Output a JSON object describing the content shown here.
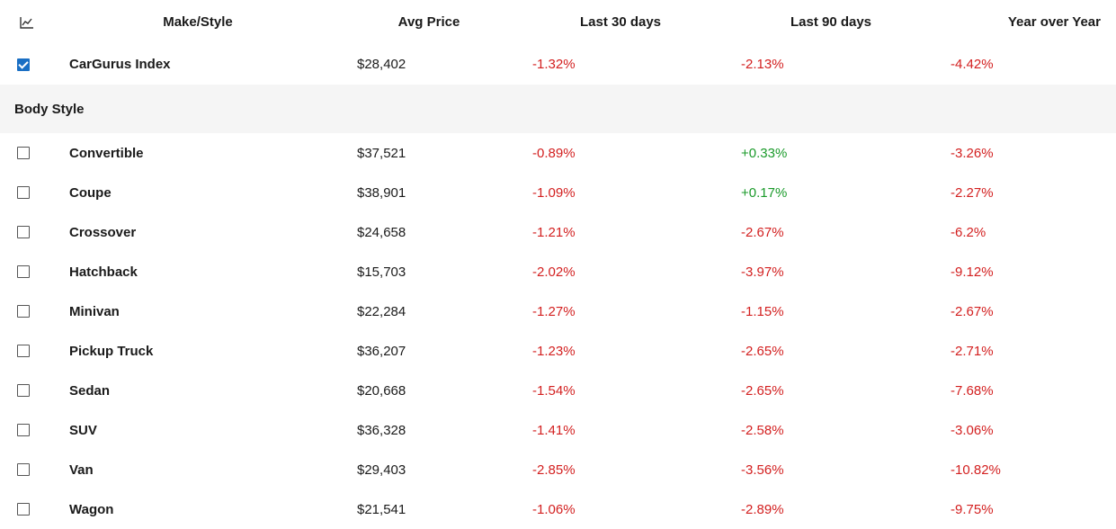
{
  "header": {
    "chart_icon": "trend-chart-icon",
    "make_style": "Make/Style",
    "avg_price": "Avg Price",
    "last_30": "Last 30 days",
    "last_90": "Last 90 days",
    "yoy": "Year over Year"
  },
  "index_row": {
    "checked": true,
    "name": "CarGurus Index",
    "price": "$28,402",
    "d30": "-1.32%",
    "d90": "-2.13%",
    "yoy": "-4.42%"
  },
  "section": {
    "title": "Body Style"
  },
  "rows": [
    {
      "name": "Convertible",
      "price": "$37,521",
      "d30": "-0.89%",
      "d90": "+0.33%",
      "yoy": "-3.26%"
    },
    {
      "name": "Coupe",
      "price": "$38,901",
      "d30": "-1.09%",
      "d90": "+0.17%",
      "yoy": "-2.27%"
    },
    {
      "name": "Crossover",
      "price": "$24,658",
      "d30": "-1.21%",
      "d90": "-2.67%",
      "yoy": "-6.2%"
    },
    {
      "name": "Hatchback",
      "price": "$15,703",
      "d30": "-2.02%",
      "d90": "-3.97%",
      "yoy": "-9.12%"
    },
    {
      "name": "Minivan",
      "price": "$22,284",
      "d30": "-1.27%",
      "d90": "-1.15%",
      "yoy": "-2.67%"
    },
    {
      "name": "Pickup Truck",
      "price": "$36,207",
      "d30": "-1.23%",
      "d90": "-2.65%",
      "yoy": "-2.71%"
    },
    {
      "name": "Sedan",
      "price": "$20,668",
      "d30": "-1.54%",
      "d90": "-2.65%",
      "yoy": "-7.68%"
    },
    {
      "name": "SUV",
      "price": "$36,328",
      "d30": "-1.41%",
      "d90": "-2.58%",
      "yoy": "-3.06%"
    },
    {
      "name": "Van",
      "price": "$29,403",
      "d30": "-2.85%",
      "d90": "-3.56%",
      "yoy": "-10.82%"
    },
    {
      "name": "Wagon",
      "price": "$21,541",
      "d30": "-1.06%",
      "d90": "-2.89%",
      "yoy": "-9.75%"
    }
  ],
  "colors": {
    "negative": "#d32020",
    "positive": "#1a9a2a",
    "checkbox_accent": "#1a6fc4"
  }
}
